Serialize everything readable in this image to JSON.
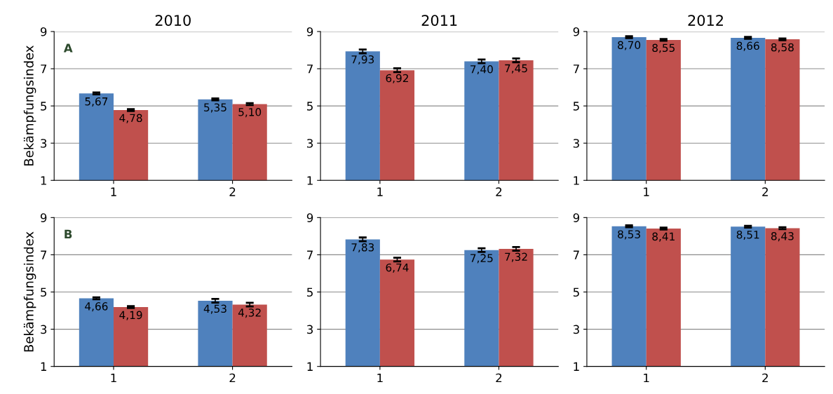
{
  "chart_data": [
    {
      "type": "bar",
      "title": "2010",
      "ylabel": "Bekämpfungsindex",
      "annotations": [
        "A"
      ],
      "categories": [
        "1",
        "2"
      ],
      "ylim": [
        1,
        9
      ],
      "yticks": [
        1,
        3,
        5,
        7,
        9
      ],
      "grid": "y",
      "series": [
        {
          "color": "#4f81bd",
          "values": [
            5.67,
            5.35
          ],
          "errors": [
            0.05,
            0.05
          ],
          "value_labels": [
            "5,67",
            "5,35"
          ]
        },
        {
          "color": "#c0504d",
          "values": [
            4.78,
            5.1
          ],
          "errors": [
            0.05,
            0.05
          ],
          "value_labels": [
            "4,78",
            "5,10"
          ]
        }
      ]
    },
    {
      "type": "bar",
      "title": "2011",
      "categories": [
        "1",
        "2"
      ],
      "ylim": [
        1,
        9
      ],
      "yticks": [
        1,
        3,
        5,
        7,
        9
      ],
      "grid": "y",
      "series": [
        {
          "color": "#4f81bd",
          "values": [
            7.93,
            7.4
          ],
          "errors": [
            0.1,
            0.1
          ],
          "value_labels": [
            "7,93",
            "7,40"
          ]
        },
        {
          "color": "#c0504d",
          "values": [
            6.92,
            7.45
          ],
          "errors": [
            0.1,
            0.1
          ],
          "value_labels": [
            "6,92",
            "7,45"
          ]
        }
      ]
    },
    {
      "type": "bar",
      "title": "2012",
      "categories": [
        "1",
        "2"
      ],
      "ylim": [
        1,
        9
      ],
      "yticks": [
        1,
        3,
        5,
        7,
        9
      ],
      "grid": "y",
      "series": [
        {
          "color": "#4f81bd",
          "values": [
            8.7,
            8.66
          ],
          "errors": [
            0.05,
            0.05
          ],
          "value_labels": [
            "8,70",
            "8,66"
          ]
        },
        {
          "color": "#c0504d",
          "values": [
            8.55,
            8.58
          ],
          "errors": [
            0.05,
            0.05
          ],
          "value_labels": [
            "8,55",
            "8,58"
          ]
        }
      ]
    },
    {
      "type": "bar",
      "ylabel": "Bekämpfungsindex",
      "annotations": [
        "B"
      ],
      "categories": [
        "1",
        "2"
      ],
      "ylim": [
        1,
        9
      ],
      "yticks": [
        1,
        3,
        5,
        7,
        9
      ],
      "grid": "y",
      "series": [
        {
          "color": "#4f81bd",
          "values": [
            4.66,
            4.53
          ],
          "errors": [
            0.05,
            0.1
          ],
          "value_labels": [
            "4,66",
            "4,53"
          ]
        },
        {
          "color": "#c0504d",
          "values": [
            4.19,
            4.32
          ],
          "errors": [
            0.05,
            0.1
          ],
          "value_labels": [
            "4,19",
            "4,32"
          ]
        }
      ]
    },
    {
      "type": "bar",
      "categories": [
        "1",
        "2"
      ],
      "ylim": [
        1,
        9
      ],
      "yticks": [
        1,
        3,
        5,
        7,
        9
      ],
      "grid": "y",
      "series": [
        {
          "color": "#4f81bd",
          "values": [
            7.83,
            7.25
          ],
          "errors": [
            0.1,
            0.1
          ],
          "value_labels": [
            "7,83",
            "7,25"
          ]
        },
        {
          "color": "#c0504d",
          "values": [
            6.74,
            7.32
          ],
          "errors": [
            0.1,
            0.1
          ],
          "value_labels": [
            "6,74",
            "7,32"
          ]
        }
      ]
    },
    {
      "type": "bar",
      "categories": [
        "1",
        "2"
      ],
      "ylim": [
        1,
        9
      ],
      "yticks": [
        1,
        3,
        5,
        7,
        9
      ],
      "grid": "y",
      "series": [
        {
          "color": "#4f81bd",
          "values": [
            8.53,
            8.51
          ],
          "errors": [
            0.05,
            0.05
          ],
          "value_labels": [
            "8,53",
            "8,51"
          ]
        },
        {
          "color": "#c0504d",
          "values": [
            8.41,
            8.43
          ],
          "errors": [
            0.05,
            0.05
          ],
          "value_labels": [
            "8,41",
            "8,43"
          ]
        }
      ]
    }
  ]
}
